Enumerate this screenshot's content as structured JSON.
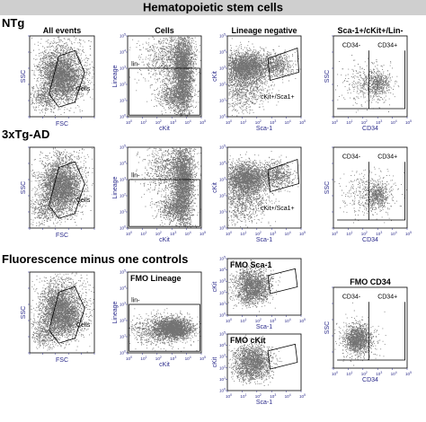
{
  "header": {
    "title": "Hematopoietic stem cells"
  },
  "rows": [
    {
      "label": "NTg"
    },
    {
      "label": "3xTg-AD"
    },
    {
      "label": "Fluorescence minus one controls"
    }
  ],
  "chart_data": [
    {
      "type": "scatter",
      "name": "ntg-all-events",
      "title": "All events",
      "xlabel": "FSC",
      "ylabel": "SSC",
      "x_scale": "linear",
      "y_scale": "linear",
      "gates": [
        "Cells"
      ]
    },
    {
      "type": "scatter",
      "name": "ntg-cells",
      "title": "Cells",
      "xlabel": "cKit",
      "ylabel": "Lineage",
      "x_scale": "log",
      "y_scale": "log",
      "xlim": [
        1,
        100000
      ],
      "ylim": [
        1,
        100000
      ],
      "gates": [
        "lin-"
      ]
    },
    {
      "type": "scatter",
      "name": "ntg-lineage-negative",
      "title": "Lineage negative",
      "xlabel": "Sca-1",
      "ylabel": "cKit",
      "x_scale": "log",
      "y_scale": "log",
      "xlim": [
        1,
        100000
      ],
      "ylim": [
        1,
        100000
      ],
      "gates": [
        "cKit+/Sca1+"
      ]
    },
    {
      "type": "scatter",
      "name": "ntg-lsk",
      "title": "Sca-1+/cKit+/Lin-",
      "xlabel": "CD34",
      "ylabel": "SSC",
      "x_scale": "log",
      "y_scale": "linear",
      "xlim": [
        1,
        100000
      ],
      "gates": [
        "CD34-",
        "CD34+"
      ]
    },
    {
      "type": "scatter",
      "name": "3xtg-all-events",
      "title": "",
      "xlabel": "FSC",
      "ylabel": "SSC",
      "x_scale": "linear",
      "y_scale": "linear",
      "gates": [
        "Cells"
      ]
    },
    {
      "type": "scatter",
      "name": "3xtg-cells",
      "title": "",
      "xlabel": "cKit",
      "ylabel": "Lineage",
      "x_scale": "log",
      "y_scale": "log",
      "xlim": [
        1,
        100000
      ],
      "ylim": [
        1,
        100000
      ],
      "gates": [
        "lin-"
      ]
    },
    {
      "type": "scatter",
      "name": "3xtg-lineage-negative",
      "title": "",
      "xlabel": "Sca-1",
      "ylabel": "cKit",
      "x_scale": "log",
      "y_scale": "log",
      "xlim": [
        1,
        100000
      ],
      "ylim": [
        1,
        100000
      ],
      "gates": [
        "cKit+/Sca1+"
      ]
    },
    {
      "type": "scatter",
      "name": "3xtg-lsk",
      "title": "",
      "xlabel": "CD34",
      "ylabel": "SSC",
      "x_scale": "log",
      "y_scale": "linear",
      "xlim": [
        1,
        100000
      ],
      "gates": [
        "CD34-",
        "CD34+"
      ]
    },
    {
      "type": "scatter",
      "name": "fmo-all-events",
      "title": "",
      "xlabel": "FSC",
      "ylabel": "SSC",
      "x_scale": "linear",
      "y_scale": "linear",
      "gates": [
        "Cells"
      ]
    },
    {
      "type": "scatter",
      "name": "fmo-lineage",
      "title": "FMO Lineage",
      "xlabel": "cKit",
      "ylabel": "Lineage",
      "x_scale": "log",
      "y_scale": "log",
      "xlim": [
        1,
        100000
      ],
      "ylim": [
        1,
        100000
      ],
      "gates": [
        "lin-"
      ]
    },
    {
      "type": "scatter",
      "name": "fmo-sca1",
      "title": "FMO Sca-1",
      "xlabel": "Sca-1",
      "ylabel": "cKit",
      "x_scale": "log",
      "y_scale": "log",
      "xlim": [
        1,
        100000
      ],
      "ylim": [
        1,
        100000
      ],
      "gates": []
    },
    {
      "type": "scatter",
      "name": "fmo-ckit",
      "title": "FMO cKit",
      "xlabel": "Sca-1",
      "ylabel": "cKit",
      "x_scale": "log",
      "y_scale": "log",
      "xlim": [
        1,
        100000
      ],
      "ylim": [
        1,
        100000
      ],
      "gates": []
    },
    {
      "type": "scatter",
      "name": "fmo-cd34",
      "title": "FMO CD34",
      "xlabel": "CD34",
      "ylabel": "SSC",
      "x_scale": "log",
      "y_scale": "linear",
      "xlim": [
        1,
        100000
      ],
      "gates": [
        "CD34-",
        "CD34+"
      ]
    }
  ],
  "colors": {
    "header_bg": "#cfcfcf",
    "axis_text": "#2a2a8a",
    "points": "#000000",
    "gate": "#000000"
  }
}
